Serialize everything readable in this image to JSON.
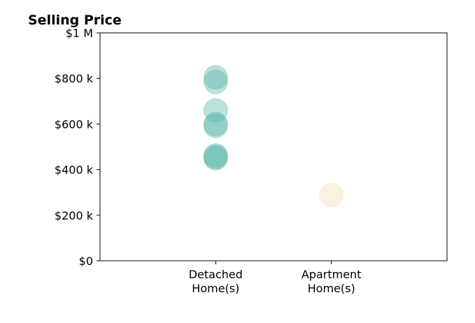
{
  "chart_data": {
    "type": "scatter",
    "title": "Selling Price",
    "xlabel": "",
    "ylabel": "",
    "categories": [
      [
        "Detached",
        "Home(s)"
      ],
      [
        "Apartment",
        "Home(s)"
      ]
    ],
    "ylim": [
      0,
      1000000
    ],
    "y_ticks": [
      0,
      200000,
      400000,
      600000,
      800000,
      1000000
    ],
    "y_tick_labels": [
      "$0",
      "$200 k",
      "$400 k",
      "$600 k",
      "$800 k",
      "$1 M"
    ],
    "grid": false,
    "series": [
      {
        "category": 0,
        "color": "#5cb8aa",
        "values": [
          805000,
          785000,
          660000,
          600000,
          592000,
          462000,
          455000,
          450000
        ]
      },
      {
        "category": 1,
        "color": "#f3dfb4",
        "values": [
          288000
        ]
      }
    ]
  }
}
